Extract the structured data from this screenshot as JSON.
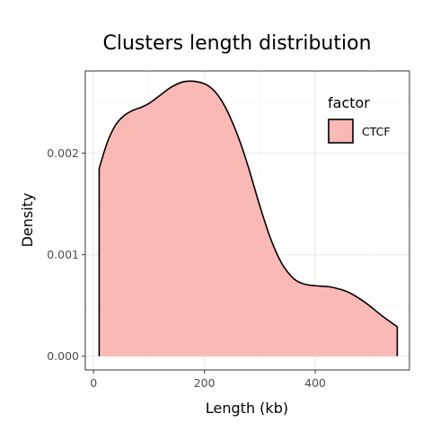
{
  "chart_data": {
    "type": "area",
    "title": "Clusters length distribution",
    "xlabel": "Length (kb)",
    "ylabel": "Density",
    "xlim": [
      -15,
      570
    ],
    "ylim": [
      -0.000135,
      0.00281
    ],
    "x_ticks": [
      0,
      200,
      400
    ],
    "y_ticks": [
      0.0,
      0.001,
      0.002
    ],
    "x_tick_labels": [
      "0",
      "200",
      "400"
    ],
    "y_tick_labels": [
      "0.000",
      "0.001",
      "0.002"
    ],
    "grid": true,
    "legend": {
      "title": "factor",
      "position": "top-right"
    },
    "series": [
      {
        "name": "CTCF",
        "fill_color": "#fbb9b5",
        "line_color": "#000000",
        "x": [
          10,
          25,
          40,
          55,
          70,
          85,
          100,
          120,
          140,
          160,
          175,
          190,
          205,
          220,
          235,
          250,
          265,
          280,
          300,
          320,
          340,
          360,
          375,
          390,
          410,
          430,
          460,
          490,
          520,
          548
        ],
        "y": [
          0.00185,
          0.00211,
          0.00228,
          0.00237,
          0.00242,
          0.00245,
          0.00249,
          0.00257,
          0.00265,
          0.0027,
          0.00271,
          0.0027,
          0.00267,
          0.0026,
          0.00248,
          0.00231,
          0.0021,
          0.00185,
          0.00148,
          0.00115,
          0.00091,
          0.00077,
          0.00072,
          0.0007,
          0.00069,
          0.00068,
          0.00063,
          0.00053,
          0.0004,
          0.00029
        ]
      }
    ]
  }
}
